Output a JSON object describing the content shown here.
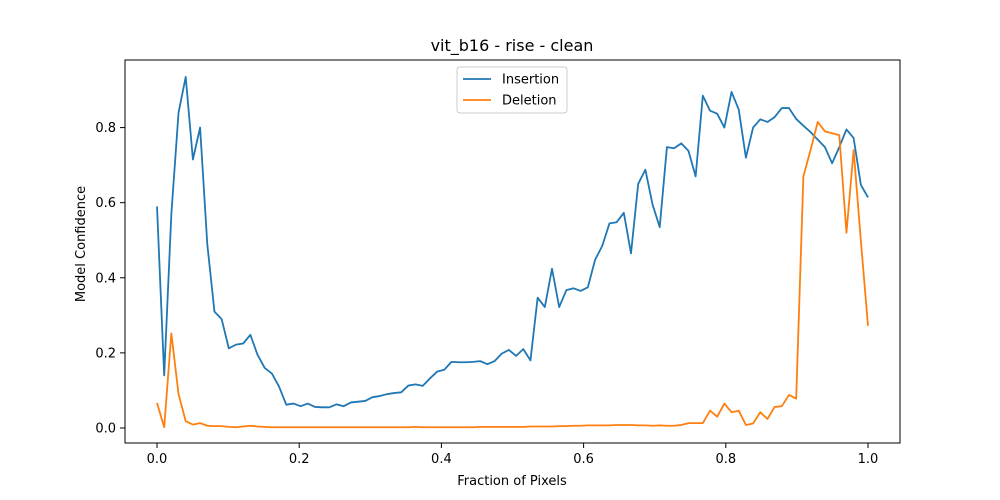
{
  "chart_data": {
    "type": "line",
    "title": "vit_b16 - rise - clean",
    "xlabel": "Fraction of Pixels",
    "ylabel": "Model Confidence",
    "xlim": [
      -0.045,
      1.045
    ],
    "ylim": [
      -0.04,
      0.98
    ],
    "xticks": [
      0.0,
      0.2,
      0.4,
      0.6,
      0.8,
      1.0
    ],
    "xtick_labels": [
      "0.0",
      "0.2",
      "0.4",
      "0.6",
      "0.8",
      "1.0"
    ],
    "yticks": [
      0.0,
      0.2,
      0.4,
      0.6,
      0.8
    ],
    "ytick_labels": [
      "0.0",
      "0.2",
      "0.4",
      "0.6",
      "0.8"
    ],
    "grid": false,
    "legend_position": "top-center",
    "series": [
      {
        "name": "Insertion",
        "color": "#1f77b4",
        "values": [
          0.59,
          0.14,
          0.57,
          0.84,
          0.935,
          0.715,
          0.8,
          0.49,
          0.31,
          0.29,
          0.212,
          0.222,
          0.225,
          0.248,
          0.195,
          0.16,
          0.145,
          0.11,
          0.062,
          0.065,
          0.058,
          0.065,
          0.056,
          0.055,
          0.055,
          0.063,
          0.058,
          0.068,
          0.07,
          0.072,
          0.082,
          0.085,
          0.09,
          0.093,
          0.095,
          0.113,
          0.116,
          0.112,
          0.132,
          0.15,
          0.155,
          0.176,
          0.175,
          0.175,
          0.176,
          0.178,
          0.17,
          0.178,
          0.198,
          0.208,
          0.192,
          0.21,
          0.18,
          0.347,
          0.322,
          0.424,
          0.322,
          0.367,
          0.372,
          0.365,
          0.375,
          0.448,
          0.485,
          0.545,
          0.548,
          0.573,
          0.465,
          0.65,
          0.688,
          0.595,
          0.535,
          0.748,
          0.745,
          0.758,
          0.738,
          0.67,
          0.885,
          0.845,
          0.837,
          0.8,
          0.895,
          0.848,
          0.72,
          0.8,
          0.822,
          0.815,
          0.828,
          0.852,
          0.852,
          0.823,
          0.805,
          0.788,
          0.768,
          0.748,
          0.705,
          0.748,
          0.795,
          0.772,
          0.648,
          0.614
        ]
      },
      {
        "name": "Deletion",
        "color": "#ff7f0e",
        "values": [
          0.067,
          0.002,
          0.252,
          0.09,
          0.018,
          0.009,
          0.013,
          0.006,
          0.005,
          0.005,
          0.003,
          0.002,
          0.004,
          0.006,
          0.004,
          0.003,
          0.002,
          0.002,
          0.002,
          0.002,
          0.002,
          0.002,
          0.002,
          0.002,
          0.002,
          0.002,
          0.002,
          0.002,
          0.002,
          0.002,
          0.002,
          0.002,
          0.002,
          0.002,
          0.002,
          0.002,
          0.003,
          0.002,
          0.002,
          0.002,
          0.002,
          0.002,
          0.002,
          0.002,
          0.002,
          0.003,
          0.003,
          0.003,
          0.003,
          0.003,
          0.003,
          0.003,
          0.004,
          0.004,
          0.004,
          0.004,
          0.005,
          0.005,
          0.006,
          0.006,
          0.007,
          0.007,
          0.007,
          0.007,
          0.008,
          0.008,
          0.008,
          0.007,
          0.007,
          0.006,
          0.007,
          0.006,
          0.006,
          0.008,
          0.013,
          0.013,
          0.013,
          0.046,
          0.03,
          0.065,
          0.042,
          0.046,
          0.008,
          0.012,
          0.042,
          0.024,
          0.056,
          0.058,
          0.088,
          0.078,
          0.67,
          0.74,
          0.815,
          0.79,
          0.785,
          0.78,
          0.52,
          0.74,
          0.5,
          0.272
        ]
      }
    ]
  }
}
